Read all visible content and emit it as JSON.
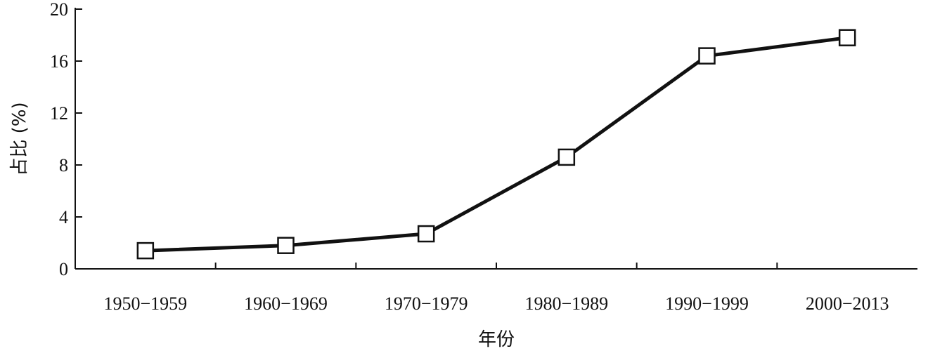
{
  "chart_data": {
    "type": "line",
    "title": "",
    "xlabel": "年份",
    "ylabel": "占比 (%)",
    "categories": [
      "1950−1959",
      "1960−1969",
      "1970−1979",
      "1980−1989",
      "1990−1999",
      "2000−2013"
    ],
    "series": [
      {
        "values": [
          1.4,
          1.8,
          2.7,
          8.6,
          16.4,
          17.8
        ]
      }
    ],
    "ylim": [
      0,
      20
    ],
    "yticks": [
      0,
      4,
      8,
      12,
      16,
      20
    ],
    "grid": false,
    "marker": "open-square",
    "colors": {
      "line": "#111111",
      "marker_fill": "#ffffff"
    }
  }
}
